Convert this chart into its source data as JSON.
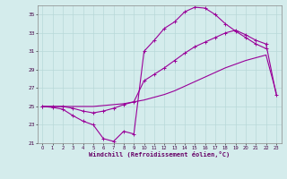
{
  "xlabel": "Windchill (Refroidissement éolien,°C)",
  "bg_color": "#d4ecec",
  "line_color": "#990099",
  "grid_color": "#b8d8d8",
  "xlim": [
    -0.5,
    23.5
  ],
  "ylim": [
    21,
    36
  ],
  "yticks": [
    21,
    23,
    25,
    27,
    29,
    31,
    33,
    35
  ],
  "xticks": [
    0,
    1,
    2,
    3,
    4,
    5,
    6,
    7,
    8,
    9,
    10,
    11,
    12,
    13,
    14,
    15,
    16,
    17,
    18,
    19,
    20,
    21,
    22,
    23
  ],
  "line1_x": [
    0,
    1,
    2,
    3,
    4,
    5,
    6,
    7,
    8,
    9,
    10,
    11,
    12,
    13,
    14,
    15,
    16,
    17,
    18,
    19,
    20,
    21,
    22
  ],
  "line1_y": [
    25.0,
    24.9,
    24.7,
    24.0,
    23.4,
    23.0,
    21.5,
    21.2,
    22.3,
    22.0,
    31.0,
    32.2,
    33.5,
    34.2,
    35.3,
    35.8,
    35.7,
    35.0,
    34.0,
    33.2,
    32.5,
    31.8,
    31.3
  ],
  "line2_x": [
    0,
    1,
    2,
    3,
    4,
    5,
    6,
    7,
    8,
    9,
    10,
    11,
    12,
    13,
    14,
    15,
    16,
    17,
    18,
    19,
    20,
    21,
    22,
    23
  ],
  "line2_y": [
    25.0,
    25.0,
    25.0,
    25.0,
    25.0,
    25.0,
    25.1,
    25.2,
    25.3,
    25.5,
    25.7,
    26.0,
    26.3,
    26.7,
    27.2,
    27.7,
    28.2,
    28.7,
    29.2,
    29.6,
    30.0,
    30.3,
    30.6,
    26.5
  ],
  "line3_x": [
    0,
    1,
    2,
    3,
    4,
    5,
    6,
    7,
    8,
    9,
    10,
    11,
    12,
    13,
    14,
    15,
    16,
    17,
    18,
    19,
    20,
    21,
    22,
    23
  ],
  "line3_y": [
    25.0,
    25.0,
    25.0,
    24.8,
    24.5,
    24.3,
    24.5,
    24.8,
    25.2,
    25.5,
    27.8,
    28.5,
    29.2,
    30.0,
    30.8,
    31.5,
    32.0,
    32.5,
    33.0,
    33.3,
    32.8,
    32.2,
    31.8,
    26.3
  ]
}
